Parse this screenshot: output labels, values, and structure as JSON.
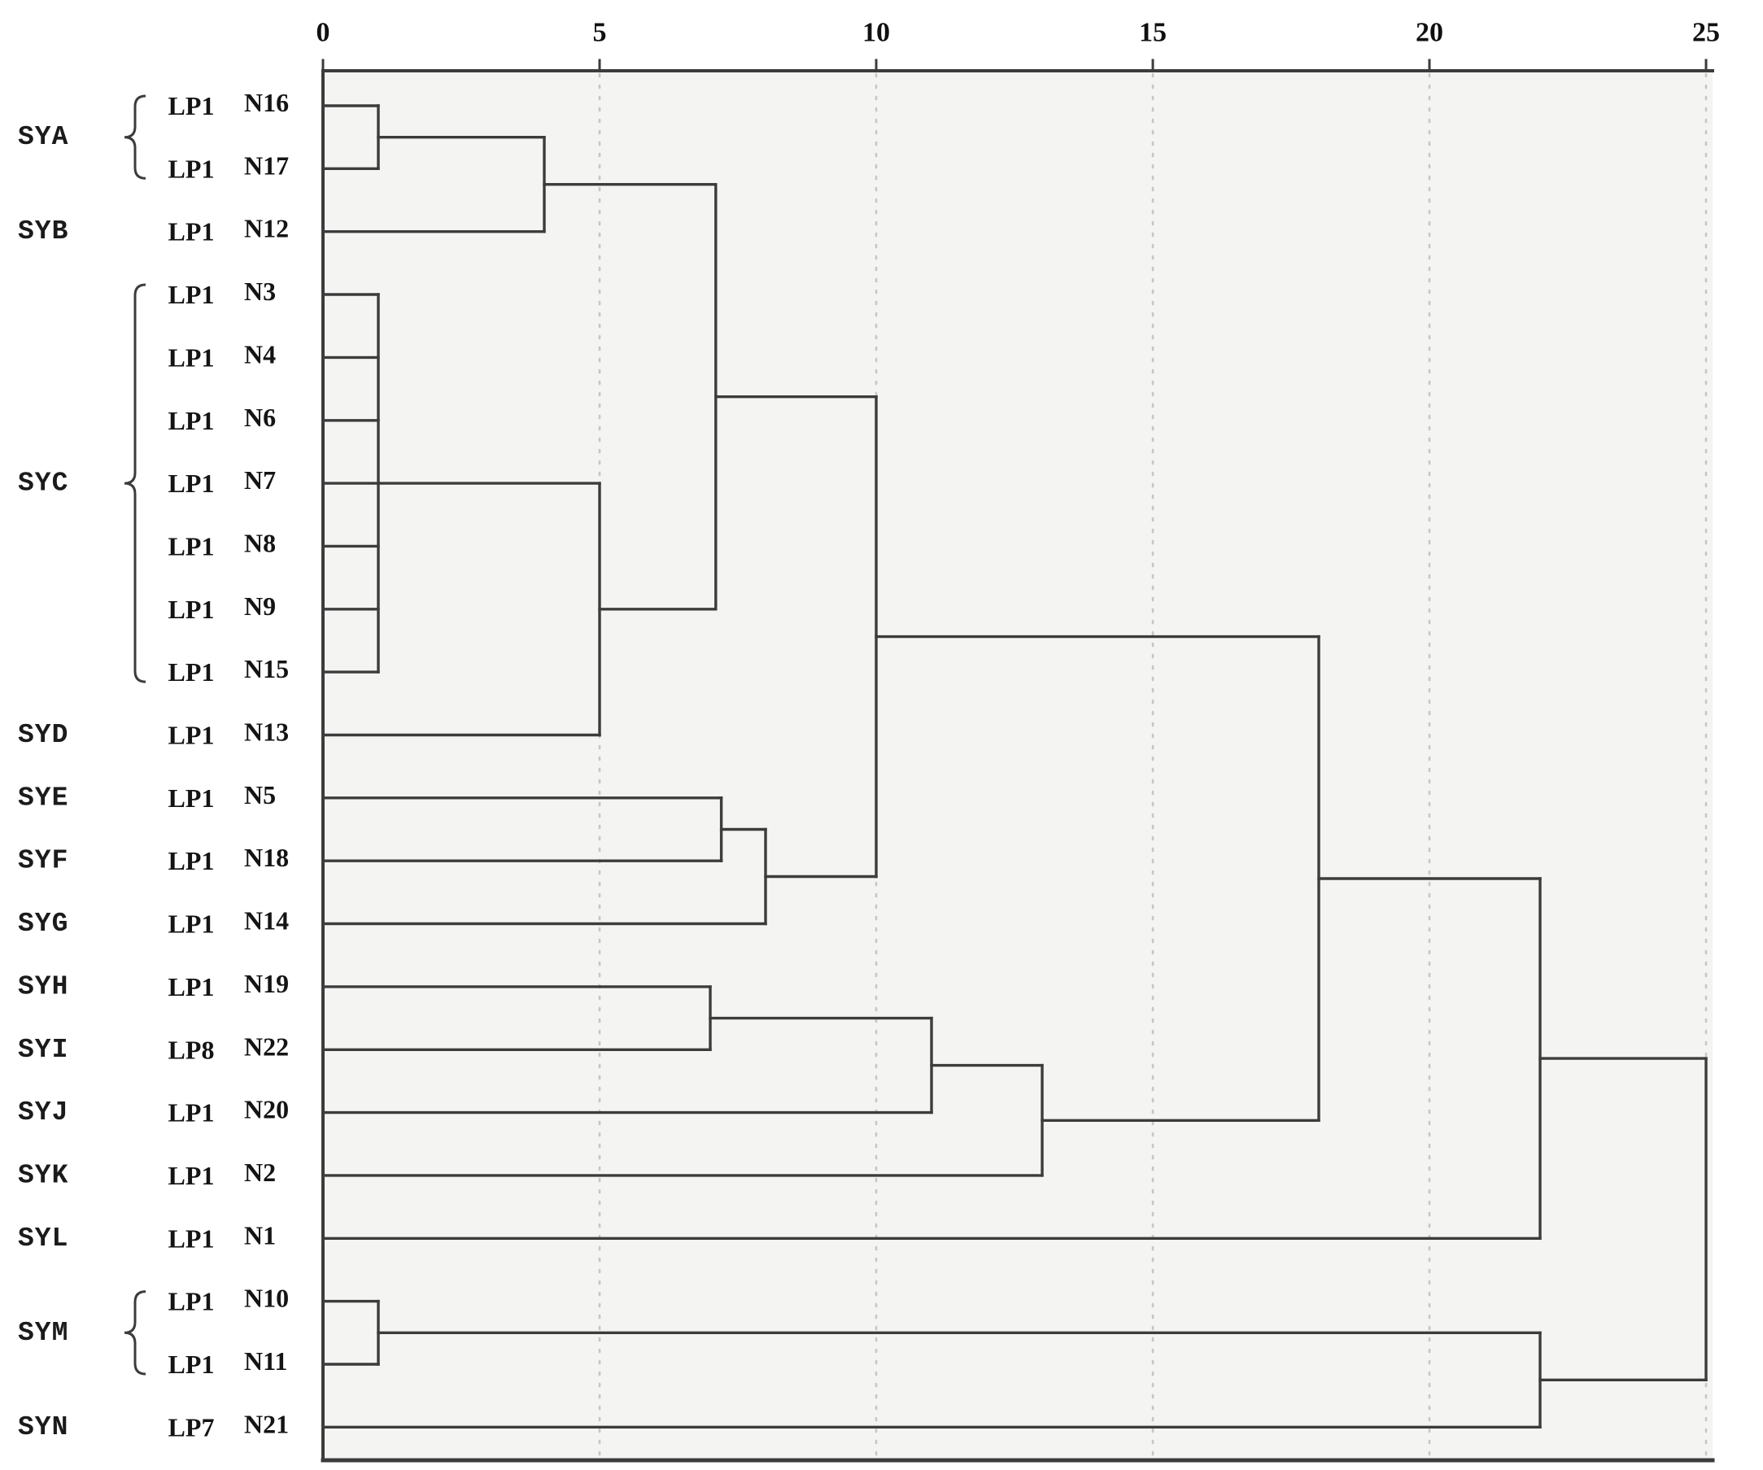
{
  "figure": {
    "background": "#ffffff",
    "plot_background": "#f4f4f2",
    "line_color": "#3c3c3c",
    "grid_color": "#c6c6c6",
    "label_color": "#141414"
  },
  "chart_data": {
    "type": "dendrogram",
    "orientation": "horizontal",
    "title": "",
    "axis": {
      "position": "top",
      "min": 0,
      "max": 25,
      "ticks": [
        0,
        5,
        10,
        15,
        20,
        25
      ],
      "gridlines": [
        5,
        10,
        15,
        20,
        25
      ],
      "gridline_style": "dashed"
    },
    "rows": [
      {
        "group": "SYA",
        "lp": "LP1",
        "leaf": "N16"
      },
      {
        "group": "SYA",
        "lp": "LP1",
        "leaf": "N17"
      },
      {
        "group": "SYB",
        "lp": "LP1",
        "leaf": "N12"
      },
      {
        "group": "SYC",
        "lp": "LP1",
        "leaf": "N3"
      },
      {
        "group": "SYC",
        "lp": "LP1",
        "leaf": "N4"
      },
      {
        "group": "SYC",
        "lp": "LP1",
        "leaf": "N6"
      },
      {
        "group": "SYC",
        "lp": "LP1",
        "leaf": "N7"
      },
      {
        "group": "SYC",
        "lp": "LP1",
        "leaf": "N8"
      },
      {
        "group": "SYC",
        "lp": "LP1",
        "leaf": "N9"
      },
      {
        "group": "SYC",
        "lp": "LP1",
        "leaf": "N15"
      },
      {
        "group": "SYD",
        "lp": "LP1",
        "leaf": "N13"
      },
      {
        "group": "SYE",
        "lp": "LP1",
        "leaf": "N5"
      },
      {
        "group": "SYF",
        "lp": "LP1",
        "leaf": "N18"
      },
      {
        "group": "SYG",
        "lp": "LP1",
        "leaf": "N14"
      },
      {
        "group": "SYH",
        "lp": "LP1",
        "leaf": "N19"
      },
      {
        "group": "SYI",
        "lp": "LP8",
        "leaf": "N22"
      },
      {
        "group": "SYJ",
        "lp": "LP1",
        "leaf": "N20"
      },
      {
        "group": "SYK",
        "lp": "LP1",
        "leaf": "N2"
      },
      {
        "group": "SYL",
        "lp": "LP1",
        "leaf": "N1"
      },
      {
        "group": "SYM",
        "lp": "LP1",
        "leaf": "N10"
      },
      {
        "group": "SYM",
        "lp": "LP1",
        "leaf": "N11"
      },
      {
        "group": "SYN",
        "lp": "LP7",
        "leaf": "N21"
      }
    ],
    "brackets": [
      {
        "group": "SYA",
        "from": "N16",
        "to": "N17"
      },
      {
        "group": "SYC",
        "from": "N3",
        "to": "N15"
      },
      {
        "group": "SYM",
        "from": "N10",
        "to": "N11"
      }
    ],
    "merges": [
      {
        "id": "a1",
        "children": [
          "N16",
          "N17"
        ],
        "distance": 1
      },
      {
        "id": "a2",
        "children": [
          "a1",
          "N12"
        ],
        "distance": 4
      },
      {
        "id": "c1",
        "children": [
          "N3",
          "N4",
          "N6",
          "N7",
          "N8",
          "N9",
          "N15"
        ],
        "distance": 1,
        "out_at": "N7"
      },
      {
        "id": "c2",
        "children": [
          "c1",
          "N13"
        ],
        "distance": 5
      },
      {
        "id": "t1",
        "children": [
          "a2",
          "c2"
        ],
        "distance": 7.1
      },
      {
        "id": "e1",
        "children": [
          "N5",
          "N18"
        ],
        "distance": 7.2
      },
      {
        "id": "e2",
        "children": [
          "e1",
          "N14"
        ],
        "distance": 8
      },
      {
        "id": "t2",
        "children": [
          "t1",
          "e2"
        ],
        "distance": 10
      },
      {
        "id": "h1",
        "children": [
          "N19",
          "N22"
        ],
        "distance": 7
      },
      {
        "id": "h2",
        "children": [
          "h1",
          "N20"
        ],
        "distance": 11
      },
      {
        "id": "h3",
        "children": [
          "h2",
          "N2"
        ],
        "distance": 13
      },
      {
        "id": "t3",
        "children": [
          "t2",
          "h3"
        ],
        "distance": 18
      },
      {
        "id": "t4",
        "children": [
          "t3",
          "N1"
        ],
        "distance": 22
      },
      {
        "id": "m1",
        "children": [
          "N10",
          "N11"
        ],
        "distance": 1
      },
      {
        "id": "m2",
        "children": [
          "m1",
          "N21"
        ],
        "distance": 22
      },
      {
        "id": "root",
        "children": [
          "t4",
          "m2"
        ],
        "distance": 25
      }
    ]
  }
}
